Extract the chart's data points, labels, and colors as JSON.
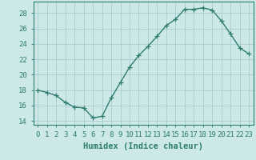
{
  "x": [
    0,
    1,
    2,
    3,
    4,
    5,
    6,
    7,
    8,
    9,
    10,
    11,
    12,
    13,
    14,
    15,
    16,
    17,
    18,
    19,
    20,
    21,
    22,
    23
  ],
  "y": [
    18.0,
    17.7,
    17.3,
    16.4,
    15.8,
    15.7,
    14.4,
    14.6,
    17.0,
    19.0,
    21.0,
    22.5,
    23.7,
    25.0,
    26.4,
    27.2,
    28.5,
    28.5,
    28.7,
    28.4,
    27.0,
    25.3,
    23.5,
    22.7
  ],
  "line_color": "#2e7d6e",
  "marker": "+",
  "bg_color": "#cce8e8",
  "grid_color": "#aacccc",
  "xlabel": "Humidex (Indice chaleur)",
  "ylim": [
    13.5,
    29.5
  ],
  "xlim": [
    -0.5,
    23.5
  ],
  "yticks": [
    14,
    16,
    18,
    20,
    22,
    24,
    26,
    28
  ],
  "xtick_labels": [
    "0",
    "1",
    "2",
    "3",
    "4",
    "5",
    "6",
    "7",
    "8",
    "9",
    "10",
    "11",
    "12",
    "13",
    "14",
    "15",
    "16",
    "17",
    "18",
    "19",
    "20",
    "21",
    "22",
    "23"
  ],
  "xlabel_fontsize": 7.5,
  "tick_fontsize": 6.5,
  "line_width": 1.0,
  "marker_size": 4,
  "marker_edge_width": 0.9
}
